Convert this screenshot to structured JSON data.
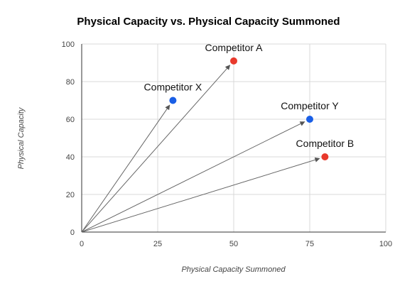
{
  "chart_data": {
    "type": "scatter",
    "title": "Physical Capacity vs. Physical Capacity Summoned",
    "xlabel": "Physical Capacity Summoned",
    "ylabel": "Physical Capacity",
    "xlim": [
      0,
      100
    ],
    "ylim": [
      0,
      100
    ],
    "xticks": [
      0,
      25,
      50,
      75,
      100
    ],
    "yticks": [
      0,
      20,
      40,
      60,
      80,
      100
    ],
    "grid": true,
    "legend": "none",
    "arrows_from_origin": true,
    "points": [
      {
        "label": "Competitor X",
        "x": 30,
        "y": 70,
        "color": "#1a5fe6"
      },
      {
        "label": "Competitor A",
        "x": 50,
        "y": 91,
        "color": "#e8392c"
      },
      {
        "label": "Competitor Y",
        "x": 75,
        "y": 60,
        "color": "#1a5fe6"
      },
      {
        "label": "Competitor B",
        "x": 80,
        "y": 40,
        "color": "#e8392c"
      }
    ]
  }
}
